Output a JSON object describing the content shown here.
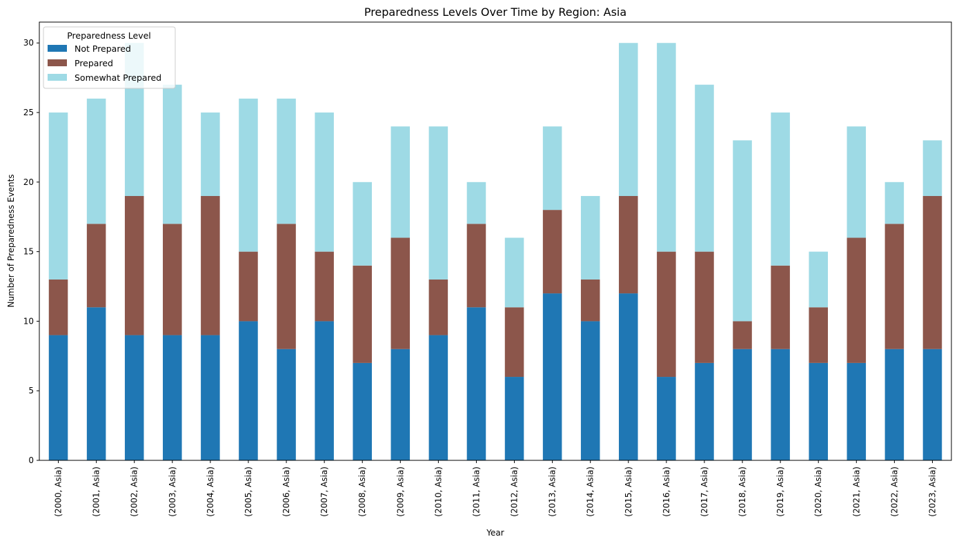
{
  "chart_data": {
    "type": "bar",
    "stacked": true,
    "title": "Preparedness Levels Over Time by Region: Asia",
    "xlabel": "Year",
    "ylabel": "Number of Preparedness Events",
    "ylim": [
      0,
      31.5
    ],
    "yticks": [
      0,
      5,
      10,
      15,
      20,
      25,
      30
    ],
    "grid": false,
    "legend": {
      "title": "Preparedness Level",
      "placement": "top-left"
    },
    "categories": [
      "(2000, Asia)",
      "(2001, Asia)",
      "(2002, Asia)",
      "(2003, Asia)",
      "(2004, Asia)",
      "(2005, Asia)",
      "(2006, Asia)",
      "(2007, Asia)",
      "(2008, Asia)",
      "(2009, Asia)",
      "(2010, Asia)",
      "(2011, Asia)",
      "(2012, Asia)",
      "(2013, Asia)",
      "(2014, Asia)",
      "(2015, Asia)",
      "(2016, Asia)",
      "(2017, Asia)",
      "(2018, Asia)",
      "(2019, Asia)",
      "(2020, Asia)",
      "(2021, Asia)",
      "(2022, Asia)",
      "(2023, Asia)"
    ],
    "series": [
      {
        "name": "Not Prepared",
        "color": "#1f77b4",
        "values": [
          9,
          11,
          9,
          9,
          9,
          10,
          8,
          10,
          7,
          8,
          9,
          11,
          6,
          12,
          10,
          12,
          6,
          7,
          8,
          8,
          7,
          7,
          8,
          8
        ]
      },
      {
        "name": "Prepared",
        "color": "#8c564b",
        "values": [
          4,
          6,
          10,
          8,
          10,
          5,
          9,
          5,
          7,
          8,
          4,
          6,
          5,
          6,
          3,
          7,
          9,
          8,
          2,
          6,
          4,
          9,
          9,
          11
        ]
      },
      {
        "name": "Somewhat Prepared",
        "color": "#9edae5",
        "values": [
          12,
          9,
          11,
          10,
          6,
          11,
          9,
          10,
          6,
          8,
          11,
          3,
          5,
          6,
          6,
          11,
          15,
          12,
          13,
          11,
          4,
          8,
          3,
          4
        ]
      }
    ]
  }
}
